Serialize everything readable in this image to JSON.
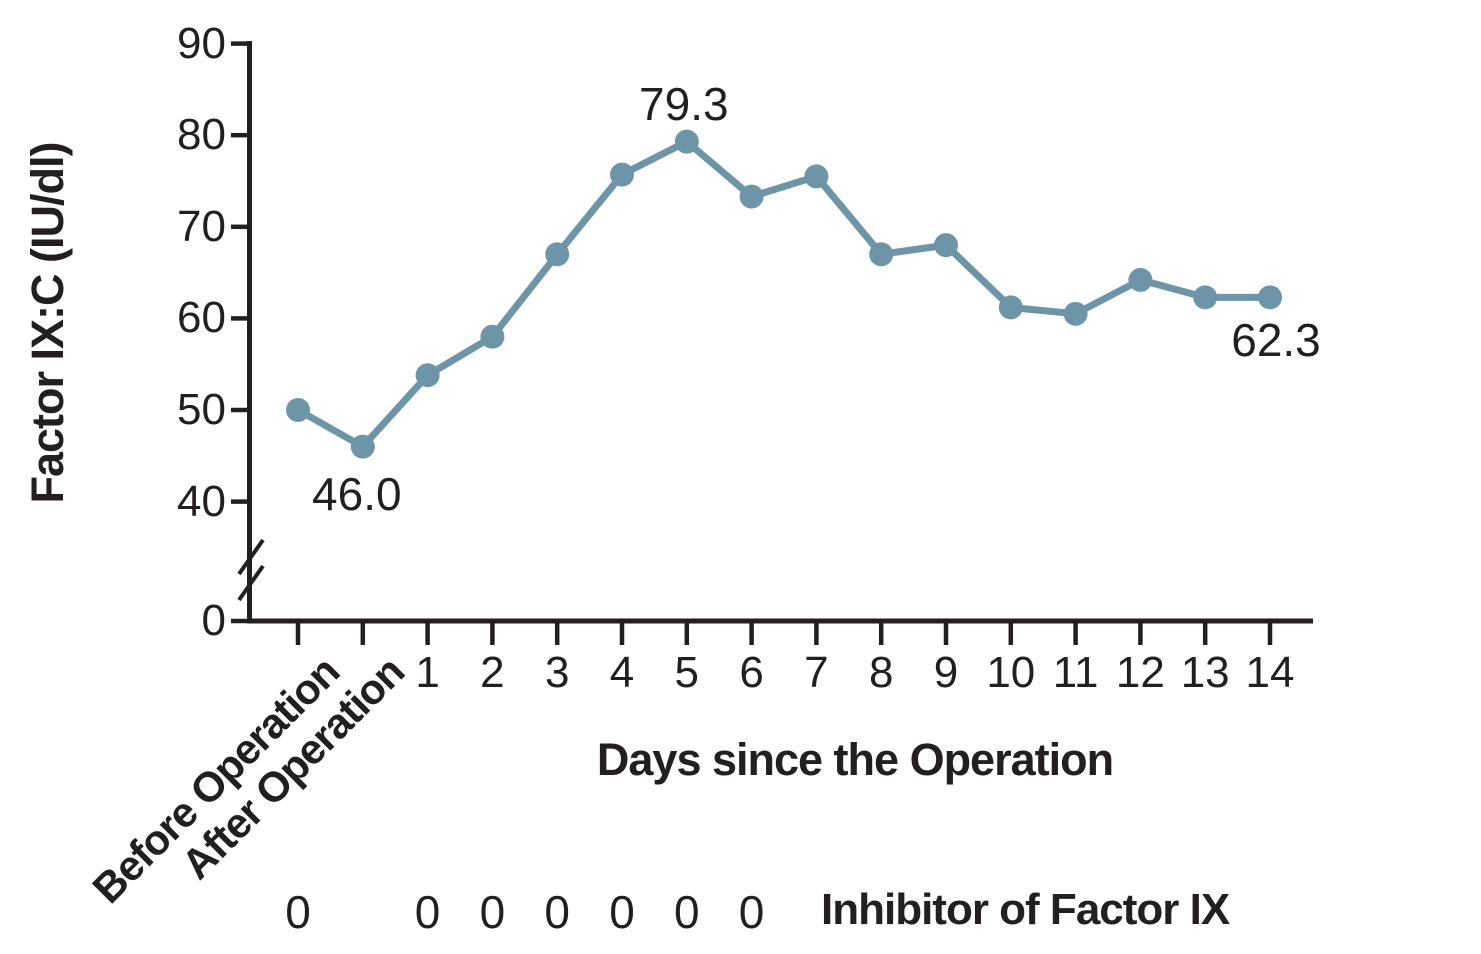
{
  "colors": {
    "background": "#ffffff",
    "line": "#6d95a7",
    "axis": "#231f20",
    "text": "#231f20"
  },
  "chart_data": {
    "type": "line",
    "title": "",
    "xlabel": "Days since the Operation",
    "ylabel": "Factor IX:C (IU/dl)",
    "categories": [
      "Before Operation",
      "After Operation",
      "1",
      "2",
      "3",
      "4",
      "5",
      "6",
      "7",
      "8",
      "9",
      "10",
      "11",
      "12",
      "13",
      "14"
    ],
    "values": [
      50.0,
      46.0,
      53.8,
      58.0,
      67.0,
      75.7,
      79.3,
      73.3,
      75.5,
      67.0,
      68.0,
      61.2,
      60.5,
      64.2,
      62.3,
      62.3
    ],
    "series_name": "Factor IX:C",
    "y_ticks": [
      90,
      80,
      70,
      60,
      50,
      40,
      0
    ],
    "ylim": [
      0,
      90
    ],
    "axis_break_between": [
      0,
      40
    ],
    "grid": false,
    "legend": "none",
    "point_labels": [
      {
        "index": 1,
        "text": "46.0",
        "placement": "below-left"
      },
      {
        "index": 6,
        "text": "79.3",
        "placement": "above"
      },
      {
        "index": 15,
        "text": "62.3",
        "placement": "below-right"
      }
    ],
    "inhibitor_row": {
      "label": "Inhibitor of Factor IX",
      "value": "0",
      "at_categories": [
        "Before Operation",
        "1",
        "2",
        "3",
        "4",
        "5",
        "6"
      ]
    }
  }
}
